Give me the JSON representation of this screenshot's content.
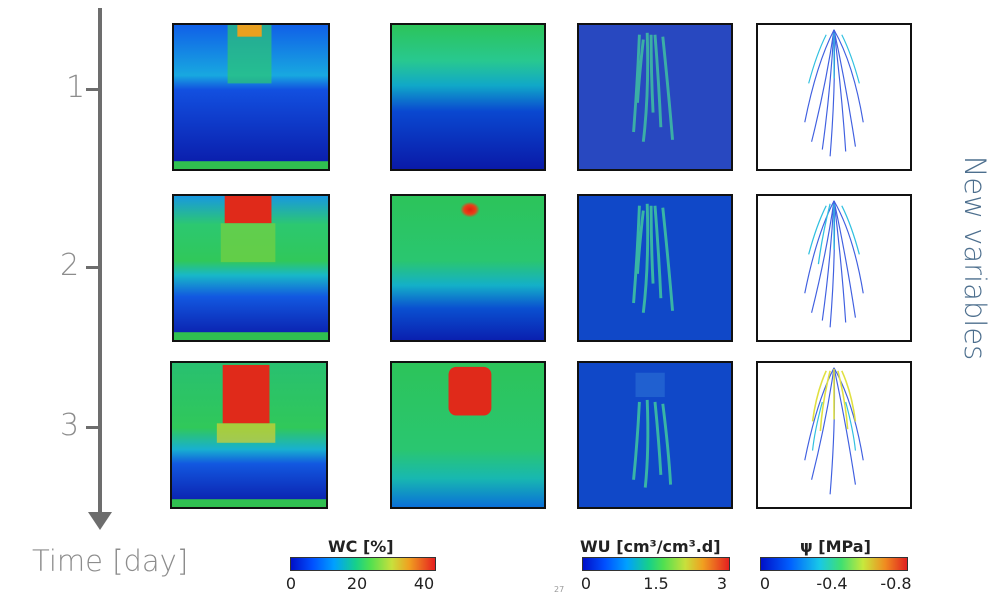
{
  "time_axis": {
    "title": "Time [day]",
    "ticks": [
      "1",
      "2",
      "3"
    ]
  },
  "side_label": "New variables",
  "colorbars": [
    {
      "title": "WC [%]",
      "ticks": [
        "0",
        "20",
        "40"
      ],
      "colormap": "jet"
    },
    {
      "title": "WU [cm³/cm³.d]",
      "ticks": [
        "0",
        "1.5",
        "3"
      ],
      "colormap": "jet"
    },
    {
      "title": "ψ [MPa]",
      "ticks": [
        "0",
        "-0.4",
        "-0.8"
      ],
      "colormap": "jet"
    }
  ],
  "footnote": "27",
  "colors": {
    "axis": "#6d6d6d",
    "side_label": "#4d6f8e",
    "deep_blue": "#0a1aa8",
    "green": "#2ec85a",
    "red": "#e02a1a"
  },
  "panels": {
    "columns": [
      "measured_wc",
      "simulated_wc",
      "water_uptake",
      "water_potential"
    ],
    "rows": 3
  }
}
